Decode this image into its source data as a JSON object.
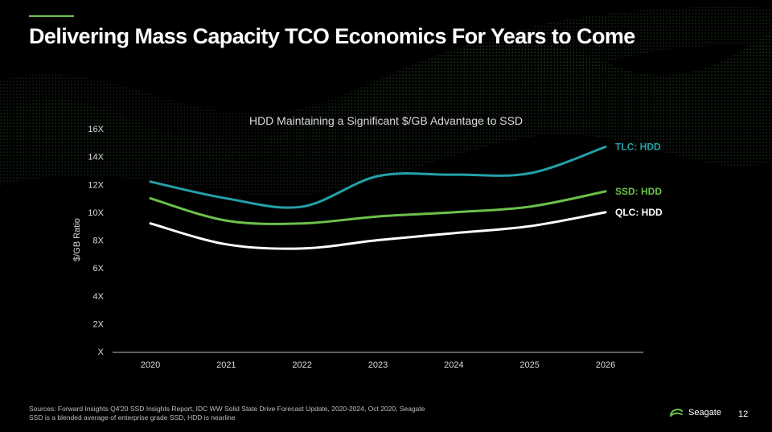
{
  "slide": {
    "title": "Delivering Mass Capacity TCO Economics For Years to Come",
    "page_number": "12",
    "brand_name": "Seagate",
    "brand_icon": "seagate-logo-icon",
    "accent_color": "#6cc04a",
    "footnotes": [
      "Sources: Forward Insights Q4'20 SSD Insights Report, IDC WW Solid State Drive Forecast Update, 2020-2024, Oct 2020, Seagate",
      "SSD is a blended average of enterprise grade SSD, HDD is nearline"
    ]
  },
  "chart_data": {
    "type": "line",
    "title": "HDD Maintaining a Significant $/GB Advantage to SSD",
    "xlabel": "",
    "ylabel": "$/GB Ratio",
    "x": [
      "2020",
      "2021",
      "2022",
      "2023",
      "2024",
      "2025",
      "2026"
    ],
    "yticks": [
      "X",
      "2X",
      "4X",
      "6X",
      "8X",
      "10X",
      "12X",
      "14X",
      "16X"
    ],
    "ylim": [
      0,
      16
    ],
    "grid": false,
    "legend": "inline-right",
    "series": [
      {
        "name": "TLC: HDD",
        "color": "#23a0a8",
        "values": [
          12.2,
          11.0,
          10.4,
          12.6,
          12.7,
          12.8,
          14.7
        ]
      },
      {
        "name": "SSD: HDD",
        "color": "#6cc04a",
        "values": [
          11.0,
          9.4,
          9.2,
          9.7,
          10.0,
          10.4,
          11.5
        ]
      },
      {
        "name": "QLC: HDD",
        "color": "#ffffff",
        "values": [
          9.2,
          7.7,
          7.4,
          8.0,
          8.5,
          9.0,
          10.0
        ]
      }
    ]
  }
}
